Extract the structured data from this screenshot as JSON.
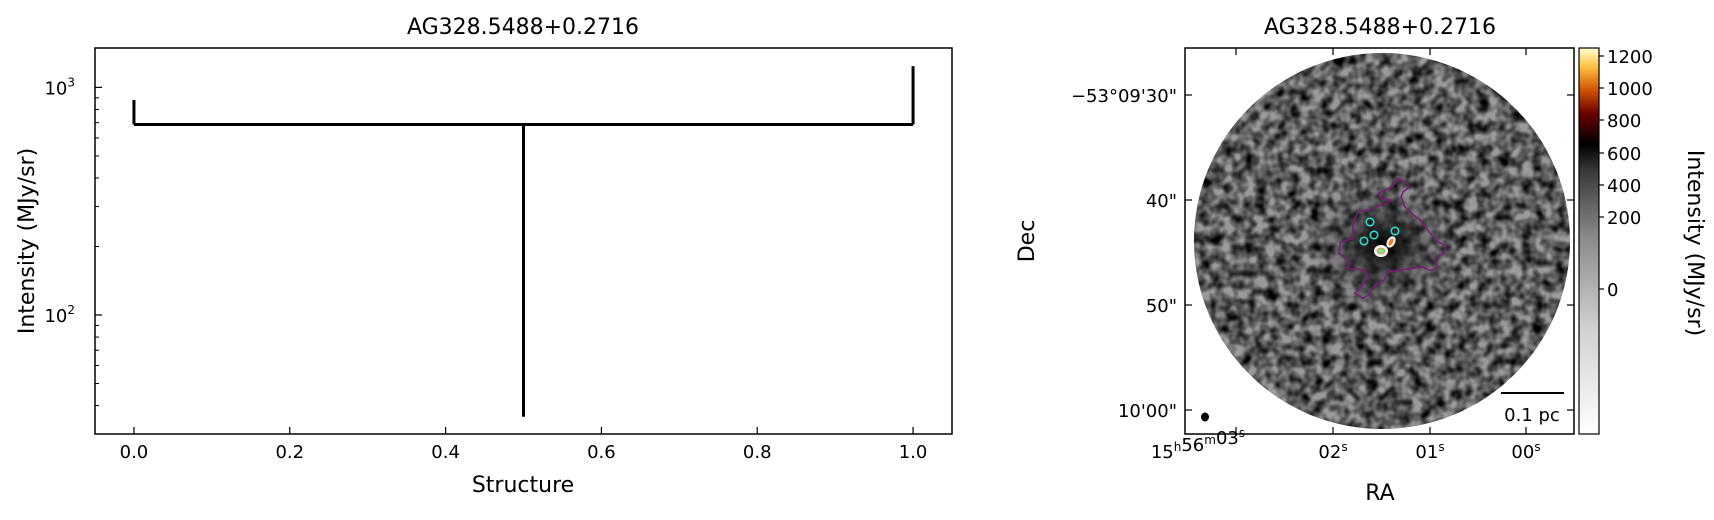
{
  "chart_data": [
    {
      "type": "dendrogram",
      "title": "AG328.5488+0.2716",
      "xlabel": "Structure",
      "ylabel": "Intensity (MJy/sr)",
      "xlim": [
        -0.05,
        1.05
      ],
      "ylim": [
        30,
        1490
      ],
      "yscale": "log",
      "xticks": [
        0.0,
        0.2,
        0.4,
        0.6,
        0.8,
        1.0
      ],
      "xtick_labels": [
        "0.0",
        "0.2",
        "0.4",
        "0.6",
        "0.8",
        "1.0"
      ],
      "yticks": [
        {
          "value": 1000,
          "base": "10",
          "exp": "3"
        },
        {
          "value": 100,
          "base": "10",
          "exp": "2"
        }
      ],
      "branch": {
        "x_left": 0.0,
        "x_right": 1.0,
        "level": 687
      },
      "leaves": [
        {
          "x": 0.0,
          "bottom": 687,
          "top": 880
        },
        {
          "x": 1.0,
          "bottom": 687,
          "top": 1240
        },
        {
          "x": 0.5,
          "bottom": 35.7,
          "top": 687
        }
      ],
      "line_color": "#000000"
    },
    {
      "type": "image",
      "title": "AG328.5488+0.2716",
      "xlabel": "RA",
      "ylabel": "Dec",
      "ra_ticks": [
        {
          "h": "15",
          "m": "56",
          "s": "03"
        },
        {
          "s": "02"
        },
        {
          "s": "01"
        },
        {
          "s": "00"
        }
      ],
      "dec_ticks": [
        "−53°09'30\"",
        "40\"",
        "50\"",
        "10'00\""
      ],
      "colorbar": {
        "label": "Intensity (MJy/sr)",
        "ticks": [
          "1200",
          "1000",
          "800",
          "600",
          "400",
          "200",
          "0"
        ],
        "colormap": "gray_r below ~400, afmhot above"
      },
      "scalebar_label": "0.1 pc",
      "contour_color": "#7a1a7a",
      "source_marker_color": "#29e0d0",
      "source_markers": 4,
      "beam": "filled-ellipse"
    }
  ]
}
